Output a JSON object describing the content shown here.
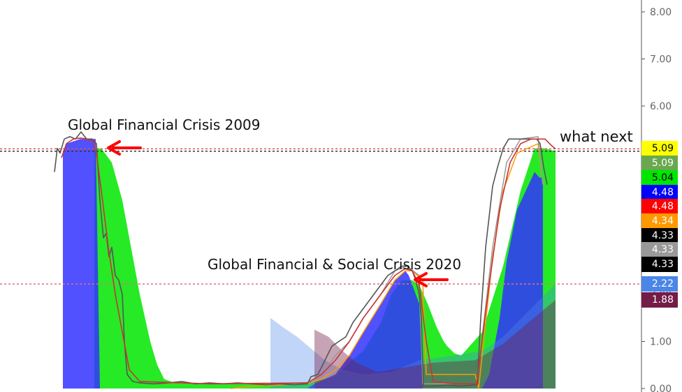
{
  "chart_data": {
    "type": "area",
    "ylim": [
      0,
      8.25
    ],
    "y_ticks": [
      "0.00",
      "1.00",
      "2.00",
      "3.00",
      "4.00",
      "5.00",
      "6.00",
      "7.00",
      "8.00"
    ],
    "grid": false,
    "annotations": [
      {
        "text": "Global Financial Crisis 2009",
        "anchor_y": 5.3
      },
      {
        "text": "Global Financial & Social Crisis 2020",
        "anchor_y": 2.4
      },
      {
        "text": "what next"
      }
    ],
    "reference_lines": [
      {
        "value": 5.09,
        "color": "#e05050"
      },
      {
        "value": 5.04,
        "color": "#333333"
      },
      {
        "value": 2.22,
        "color": "#e07080"
      }
    ],
    "last_value_labels": [
      {
        "value": "5.09",
        "y": 5.09,
        "bg": "#ffff00",
        "fg": "#000000"
      },
      {
        "value": "5.09",
        "y": 4.78,
        "bg": "#6aa84f",
        "fg": "#ffffff"
      },
      {
        "value": "5.04",
        "y": 4.48,
        "bg": "#00e600",
        "fg": "#000000"
      },
      {
        "value": "4.48",
        "y": 4.17,
        "bg": "#0000ff",
        "fg": "#ffffff"
      },
      {
        "value": "4.48",
        "y": 3.86,
        "bg": "#ff0000",
        "fg": "#ffffff"
      },
      {
        "value": "4.34",
        "y": 3.56,
        "bg": "#ff9900",
        "fg": "#ffffff"
      },
      {
        "value": "4.33",
        "y": 3.25,
        "bg": "#000000",
        "fg": "#ffffff"
      },
      {
        "value": "4.33",
        "y": 2.95,
        "bg": "#999999",
        "fg": "#ffffff"
      },
      {
        "value": "4.33",
        "y": 2.64,
        "bg": "#000000",
        "fg": "#ffffff"
      },
      {
        "value": "2.22",
        "y": 2.22,
        "bg": "#4a86e8",
        "fg": "#ffffff"
      },
      {
        "value": "1.88",
        "y": 1.88,
        "bg": "#741b47",
        "fg": "#ffffff"
      }
    ],
    "series": [
      {
        "color": "#00e600",
        "kind": "area",
        "opacity": 0.85,
        "x": [
          135,
          145,
          160,
          175,
          185,
          200,
          215,
          225,
          235,
          250,
          400,
          450,
          480,
          500,
          520,
          545,
          560,
          575,
          590,
          600,
          612,
          625,
          635,
          640,
          650,
          660,
          690,
          720,
          745,
          765,
          780,
          795
        ],
        "y": [
          5.09,
          5.1,
          4.8,
          4.0,
          3.2,
          2.0,
          1.0,
          0.5,
          0.2,
          0.12,
          0.1,
          0.15,
          0.25,
          0.55,
          0.8,
          1.4,
          2.0,
          2.3,
          2.3,
          2.2,
          1.8,
          1.3,
          1.0,
          0.9,
          0.75,
          0.7,
          1.2,
          2.6,
          4.2,
          5.1,
          5.1,
          5.04
        ]
      },
      {
        "color": "#3333ff",
        "kind": "area",
        "opacity": 0.85,
        "x": [
          90,
          95,
          115,
          135,
          137,
          143,
          440,
          450,
          480,
          500,
          520,
          545,
          565,
          580,
          585,
          600,
          605,
          690,
          700,
          715,
          725,
          740,
          765,
          772,
          777
        ],
        "y": [
          5.0,
          5.2,
          5.3,
          5.3,
          5.3,
          0.0,
          0.0,
          0.1,
          0.3,
          0.7,
          1.2,
          1.8,
          2.3,
          2.5,
          2.4,
          1.8,
          0.0,
          0.0,
          0.3,
          1.5,
          2.7,
          3.8,
          4.6,
          4.48,
          4.48
        ]
      },
      {
        "color": "#4a86e8",
        "kind": "area",
        "opacity": 0.35,
        "x": [
          387,
          405,
          425,
          445,
          465,
          490,
          520,
          560,
          600,
          650,
          690,
          720,
          760,
          795
        ],
        "y": [
          1.5,
          1.3,
          1.1,
          0.85,
          0.6,
          0.4,
          0.3,
          0.35,
          0.6,
          0.7,
          0.8,
          1.1,
          1.7,
          2.22
        ]
      },
      {
        "color": "#741b47",
        "kind": "area",
        "opacity": 0.4,
        "x": [
          450,
          470,
          490,
          510,
          540,
          580,
          620,
          680,
          720,
          760,
          795
        ],
        "y": [
          1.25,
          1.1,
          0.8,
          0.55,
          0.35,
          0.45,
          0.55,
          0.6,
          0.95,
          1.45,
          1.88
        ]
      },
      {
        "color": "#ff9900",
        "kind": "line",
        "width": 1.5,
        "x": [
          330,
          360,
          440,
          460,
          480,
          500,
          520,
          545,
          565,
          580,
          590,
          605,
          610,
          680,
          685,
          705,
          720,
          740,
          770,
          777
        ],
        "y": [
          0.0,
          0.05,
          0.1,
          0.2,
          0.4,
          0.7,
          1.2,
          1.8,
          2.3,
          2.5,
          2.5,
          2.3,
          0.3,
          0.3,
          0.0,
          2.8,
          4.2,
          5.0,
          5.2,
          4.34
        ]
      },
      {
        "color": "#999999",
        "kind": "line",
        "width": 1.5,
        "x": [
          443,
          460,
          480,
          500,
          520,
          545,
          565,
          582,
          600,
          605,
          682,
          705,
          725,
          745,
          770,
          777
        ],
        "y": [
          0.1,
          0.3,
          0.7,
          1.0,
          1.5,
          2.0,
          2.5,
          2.6,
          2.4,
          0.1,
          0.1,
          3.0,
          4.8,
          5.3,
          5.35,
          4.33
        ]
      },
      {
        "color": "#555555",
        "kind": "line",
        "width": 1.6,
        "x": [
          78,
          82,
          86,
          92,
          100,
          108,
          116,
          124,
          132,
          138,
          143,
          148,
          152,
          156,
          160,
          165,
          170,
          175,
          178,
          182,
          190,
          200,
          220,
          240,
          260,
          280,
          300,
          320,
          340,
          360,
          380,
          400,
          420,
          440,
          445,
          455,
          465,
          475,
          485,
          495,
          505,
          515,
          525,
          535,
          545,
          555,
          565,
          575,
          583,
          590,
          595,
          600,
          603,
          606,
          620,
          640,
          660,
          675,
          683,
          688,
          695,
          705,
          712,
          720,
          728,
          735,
          745,
          760,
          768,
          773,
          778,
          783
        ],
        "y": [
          4.6,
          5.1,
          5.0,
          5.3,
          5.35,
          5.3,
          5.45,
          5.3,
          5.3,
          5.2,
          4.0,
          3.2,
          3.3,
          2.8,
          3.0,
          2.4,
          2.3,
          2.0,
          1.0,
          0.3,
          0.15,
          0.12,
          0.1,
          0.12,
          0.15,
          0.1,
          0.12,
          0.1,
          0.12,
          0.1,
          0.08,
          0.1,
          0.08,
          0.1,
          0.25,
          0.3,
          0.6,
          0.9,
          1.0,
          1.1,
          1.4,
          1.6,
          1.8,
          2.0,
          2.2,
          2.4,
          2.5,
          2.6,
          2.6,
          2.5,
          2.3,
          2.0,
          1.5,
          0.05,
          0.05,
          0.07,
          0.05,
          0.07,
          0.08,
          1.5,
          3.0,
          4.3,
          4.7,
          5.1,
          5.3,
          5.3,
          5.3,
          5.3,
          5.3,
          5.2,
          4.7,
          4.33
        ]
      },
      {
        "color": "#cc3333",
        "kind": "line",
        "width": 1.6,
        "x": [
          88,
          95,
          105,
          115,
          125,
          133,
          138,
          145,
          155,
          165,
          175,
          185,
          200,
          300,
          440,
          460,
          480,
          500,
          520,
          545,
          565,
          580,
          590,
          600,
          610,
          620,
          650,
          682,
          700,
          715,
          730,
          745,
          760,
          770,
          780,
          790,
          795
        ],
        "y": [
          4.9,
          5.2,
          5.3,
          5.32,
          5.3,
          5.25,
          5.0,
          4.2,
          3.0,
          2.0,
          1.2,
          0.4,
          0.15,
          0.1,
          0.12,
          0.3,
          0.6,
          1.0,
          1.5,
          2.0,
          2.4,
          2.55,
          2.5,
          2.2,
          1.0,
          0.15,
          0.1,
          0.1,
          2.2,
          3.8,
          4.8,
          5.2,
          5.3,
          5.3,
          5.3,
          5.15,
          5.09
        ]
      }
    ]
  }
}
